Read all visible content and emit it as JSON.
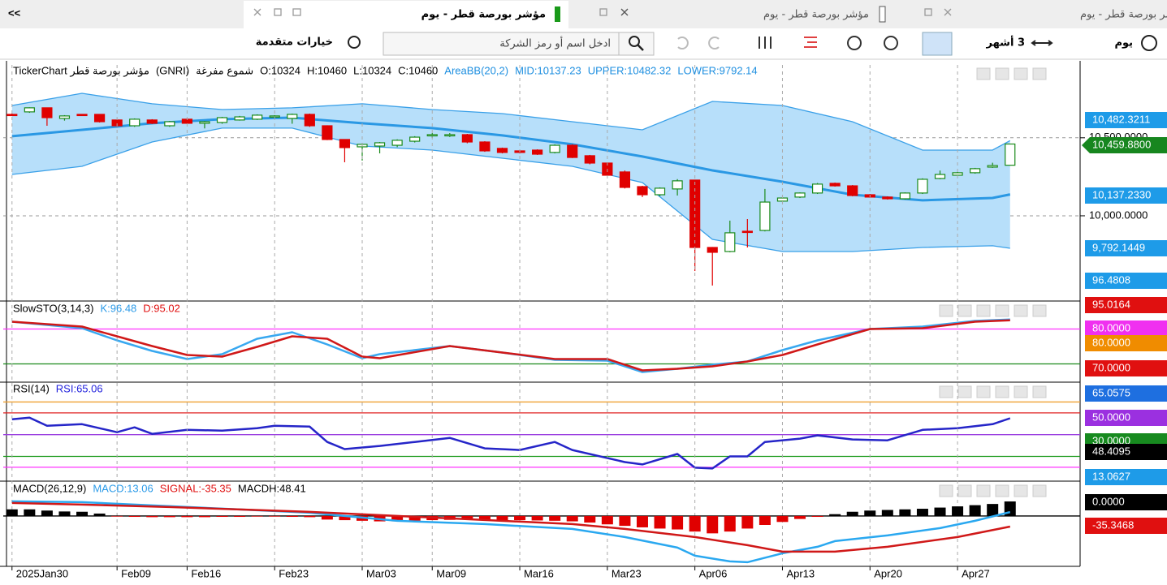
{
  "tabs": {
    "collapse": "<<",
    "titles": [
      "مؤشر بورصة قطر - يوم",
      "مؤشر بورصة قطر - يوم",
      "مؤشر بورصة قطر - يوم"
    ]
  },
  "toolbar": {
    "advanced": "خيارات متقدمة",
    "search_placeholder": "ادخل اسم أو رمز الشركة",
    "period": "3 أشهر",
    "interval": "يوم"
  },
  "chart_data": [
    {
      "type": "candlestick",
      "legend": [
        {
          "text": "TickerChart مؤشر بورصة قطر",
          "color": "#000000"
        },
        {
          "text": "(GNRI)",
          "color": "#000000"
        },
        {
          "text": "شموع مفرغة",
          "color": "#000000"
        },
        {
          "text": "O:10324",
          "color": "#000000"
        },
        {
          "text": "H:10460",
          "color": "#000000"
        },
        {
          "text": "L:10324",
          "color": "#000000"
        },
        {
          "text": "C:10460",
          "color": "#000000"
        },
        {
          "text": "AreaBB(20,2)",
          "color": "#1e8fe0"
        },
        {
          "text": "MID:10137.23",
          "color": "#1e8fe0"
        },
        {
          "text": "UPPER:10482.32",
          "color": "#1e8fe0"
        },
        {
          "text": "LOWER:9792.14",
          "color": "#1e8fe0"
        }
      ],
      "xlim": [
        -0.5,
        61
      ],
      "ylim": [
        9459,
        10967
      ],
      "yticks": [
        {
          "value": 10000,
          "label": "10,000.0000"
        },
        {
          "value": 10500,
          "label": "10,500.0000"
        }
      ],
      "candles": {
        "up_color": "#1a8a1a",
        "down_color": "#e00000",
        "open": [
          10650,
          10666,
          10692,
          10624,
          10650,
          10650,
          10614,
          10577,
          10614,
          10577,
          10619,
          10593,
          10598,
          10614,
          10619,
          10634,
          10624,
          10650,
          10577,
          10489,
          10442,
          10447,
          10452,
          10478,
          10515,
          10515,
          10520,
          10473,
          10432,
          10416,
          10421,
          10406,
          10452,
          10385,
          10338,
          10281,
          10187,
          10135,
          10172,
          10229,
          9797,
          9771,
          9901,
          9906,
          10094,
          10120,
          10146,
          10208,
          10192,
          10135,
          10120,
          10109,
          10146,
          10239,
          10260,
          10276,
          10312,
          10324
        ],
        "high": [
          10655,
          10695,
          10692,
          10645,
          10652,
          10652,
          10620,
          10624,
          10619,
          10608,
          10624,
          10608,
          10634,
          10640,
          10650,
          10645,
          10655,
          10655,
          10580,
          10490,
          10465,
          10473,
          10490,
          10510,
          10530,
          10530,
          10525,
          10478,
          10437,
          10420,
          10426,
          10458,
          10458,
          10390,
          10343,
          10290,
          10192,
          10182,
          10235,
          10229,
          9800,
          9969,
          9979,
          10172,
          10120,
          10150,
          10210,
          10213,
          10197,
          10140,
          10125,
          10150,
          10240,
          10290,
          10281,
          10307,
          10340,
          10460
        ],
        "low": [
          10640,
          10660,
          10577,
          10610,
          10640,
          10598,
          10570,
          10570,
          10588,
          10570,
          10588,
          10560,
          10590,
          10610,
          10614,
          10630,
          10590,
          10570,
          10485,
          10343,
          10354,
          10400,
          10440,
          10470,
          10500,
          10505,
          10465,
          10410,
          10400,
          10400,
          10390,
          10400,
          10370,
          10330,
          10255,
          10175,
          10120,
          10125,
          10130,
          9646,
          9553,
          9766,
          9797,
          9900,
          10088,
          10114,
          10140,
          10187,
          10125,
          10114,
          10104,
          10104,
          10140,
          10234,
          10255,
          10270,
          10307,
          10324
        ],
        "close": [
          10645,
          10692,
          10629,
          10640,
          10645,
          10603,
          10577,
          10619,
          10593,
          10603,
          10593,
          10603,
          10629,
          10634,
          10645,
          10640,
          10650,
          10577,
          10489,
          10437,
          10458,
          10468,
          10484,
          10504,
          10520,
          10520,
          10473,
          10416,
          10406,
          10406,
          10395,
          10452,
          10374,
          10338,
          10260,
          10182,
          10135,
          10177,
          10224,
          9797,
          9766,
          9891,
          9896,
          10088,
          10114,
          10146,
          10203,
          10192,
          10130,
          10120,
          10109,
          10146,
          10234,
          10265,
          10276,
          10302,
          10322,
          10460
        ]
      },
      "band": {
        "line_color": "#3aa0e8",
        "fill_color": "#b7dffa",
        "mid_color": "#2a98e4",
        "x": [
          0,
          4,
          8,
          12,
          16,
          20,
          24,
          28,
          32,
          36,
          40,
          44,
          48,
          52,
          56,
          57
        ],
        "upper": [
          10707,
          10785,
          10718,
          10681,
          10692,
          10718,
          10681,
          10655,
          10603,
          10551,
          10733,
          10707,
          10603,
          10421,
          10421,
          10482
        ],
        "mid": [
          10510,
          10551,
          10593,
          10619,
          10629,
          10593,
          10562,
          10515,
          10458,
          10380,
          10291,
          10218,
          10135,
          10099,
          10114,
          10137
        ],
        "lower": [
          10265,
          10317,
          10473,
          10562,
          10562,
          10447,
          10421,
          10369,
          10317,
          10213,
          9849,
          9771,
          9771,
          9797,
          9808,
          9792
        ]
      },
      "axis_labels": [
        {
          "label": "10,482.3211",
          "color": "#1e9be8"
        },
        {
          "label": "10,459.8800",
          "color": "#17861f",
          "pointer": true
        },
        {
          "label": "10,137.2330",
          "color": "#1e9be8"
        },
        {
          "label": "9,792.1449",
          "color": "#1e9be8"
        },
        {
          "label": "96.4808",
          "color": "#1e9be8"
        }
      ]
    },
    {
      "type": "line",
      "legend": [
        {
          "text": "SlowSTO(3,14,3)",
          "color": "#000000"
        },
        {
          "text": "K:96.48",
          "color": "#2a9ae8"
        },
        {
          "text": "D:95.02",
          "color": "#e01010"
        }
      ],
      "xlim": [
        -0.5,
        61
      ],
      "ylim": [
        -10,
        124
      ],
      "levels": [
        {
          "value": 80,
          "color": "#ff33ff"
        },
        {
          "value": 20,
          "color": "#1a8a1a"
        }
      ],
      "series": [
        {
          "color": "#38a8f0",
          "x": [
            0,
            4,
            6,
            8,
            10,
            12,
            14,
            16,
            18,
            20,
            21,
            25,
            28,
            31,
            34,
            36,
            38,
            40,
            42,
            44,
            46,
            49,
            52,
            55,
            57
          ],
          "values": [
            92.6,
            81.4,
            60.5,
            42.3,
            28.4,
            36.8,
            63.3,
            74.4,
            53.5,
            29.8,
            36.8,
            50.7,
            39.6,
            27,
            25.6,
            6.1,
            11.7,
            18.6,
            24.2,
            43.7,
            60.5,
            80,
            84.2,
            94,
            96.48
          ]
        },
        {
          "color": "#d01818",
          "x": [
            0,
            4,
            6,
            8,
            10,
            12,
            14,
            16,
            18,
            20,
            21,
            25,
            28,
            31,
            34,
            36,
            38,
            40,
            42,
            44,
            46,
            49,
            52,
            55,
            57
          ],
          "values": [
            92.6,
            84.2,
            67.4,
            50.7,
            35.4,
            32.6,
            49.3,
            67.4,
            63.3,
            32.6,
            29.8,
            50.7,
            39.6,
            28.4,
            28.4,
            8.9,
            11.7,
            15.8,
            24.2,
            35.4,
            53.5,
            80,
            81.4,
            92.6,
            95.02
          ]
        }
      ],
      "axis_labels": [
        {
          "label": "95.0164",
          "color": "#e01010"
        },
        {
          "label": "80.0000",
          "color": "#f030f0"
        },
        {
          "label": "80.0000",
          "color": "#f08c00"
        },
        {
          "label": "70.0000",
          "color": "#e01010"
        }
      ]
    },
    {
      "type": "line",
      "legend": [
        {
          "text": "RSI(14)",
          "color": "#000000"
        },
        {
          "text": "RSI:65.06",
          "color": "#2222dd"
        }
      ],
      "xlim": [
        -0.5,
        61
      ],
      "ylim": [
        8,
        96
      ],
      "levels": [
        {
          "value": 80,
          "color": "#f0a030"
        },
        {
          "value": 70,
          "color": "#e02020"
        },
        {
          "value": 50,
          "color": "#9b40e0"
        },
        {
          "value": 30,
          "color": "#1a9a1a"
        },
        {
          "value": 20,
          "color": "#ff33ff"
        }
      ],
      "series": [
        {
          "color": "#2525c8",
          "x": [
            0,
            1,
            2,
            4,
            6,
            7,
            8,
            10,
            12,
            14,
            15,
            17,
            18,
            19,
            21,
            23,
            25,
            27,
            29,
            31,
            32,
            35,
            36,
            38,
            39,
            40,
            41,
            42,
            43,
            45,
            46,
            48,
            50,
            52,
            54,
            56,
            57
          ],
          "values": [
            64.1,
            65.6,
            58.1,
            59.6,
            52.2,
            56.7,
            50.7,
            54.4,
            53.7,
            55.9,
            58.1,
            57.4,
            43.3,
            36.7,
            39.6,
            43.3,
            47,
            37.4,
            35.9,
            43.3,
            35.9,
            24.8,
            22.6,
            32.2,
            19.6,
            18.9,
            30,
            30,
            43.3,
            46.3,
            49.3,
            45.6,
            44.8,
            54.4,
            55.9,
            59.6,
            65.06
          ]
        }
      ],
      "axis_labels": [
        {
          "label": "65.0575",
          "color": "#1e6fe0"
        },
        {
          "label": "50.0000",
          "color": "#9b30e0"
        },
        {
          "label": "30.0000",
          "color": "#178a1f"
        },
        {
          "label": "48.4095",
          "color": "#000000"
        },
        {
          "label": "13.0627",
          "color": "#1e9be8"
        }
      ]
    },
    {
      "type": "combo",
      "legend": [
        {
          "text": "MACD(26,12,9)",
          "color": "#000000"
        },
        {
          "text": "MACD:13.06",
          "color": "#2a9ae8"
        },
        {
          "text": "SIGNAL:-35.35",
          "color": "#e01010"
        },
        {
          "text": "MACDH:48.41",
          "color": "#000000"
        }
      ],
      "xlim": [
        -0.5,
        61
      ],
      "ylim": [
        -168,
        108
      ],
      "levels": [
        {
          "value": 0,
          "color": "#000000"
        }
      ],
      "bars": {
        "up_color": "#000000",
        "down_color": "#e00000",
        "values": [
          22,
          22,
          18,
          15,
          14,
          8,
          -2,
          -3,
          -4,
          -4,
          -4,
          -4,
          -3,
          -3,
          -2,
          -2,
          -3,
          -4,
          -12,
          -14,
          -16,
          -18,
          -18,
          -16,
          -14,
          -13,
          -12,
          -12,
          -14,
          -14,
          -15,
          -16,
          -18,
          -22,
          -28,
          -33,
          -38,
          -42,
          -45,
          -52,
          -58,
          -52,
          -42,
          -30,
          -20,
          -10,
          -3,
          6,
          14,
          18,
          20,
          22,
          24,
          28,
          32,
          36,
          40,
          48.41
        ]
      },
      "series": [
        {
          "color": "#2aa8f0",
          "x": [
            0,
            4,
            9,
            13,
            17,
            19,
            22,
            27,
            32,
            35,
            38,
            39,
            41,
            42,
            44,
            46,
            47,
            50,
            53,
            55,
            57
          ],
          "values": [
            48.7,
            46,
            32.5,
            21.6,
            10.8,
            0,
            -16.2,
            -27.1,
            -43.3,
            -70.3,
            -105.5,
            -132.6,
            -151.5,
            -154.2,
            -124.5,
            -102.8,
            -83.9,
            -64.9,
            -40.6,
            -16.2,
            13.06
          ]
        },
        {
          "color": "#d01818",
          "x": [
            0,
            4,
            9,
            13,
            17,
            22,
            27,
            32,
            35,
            39,
            42,
            44,
            47,
            50,
            54,
            57
          ],
          "values": [
            43.3,
            37.9,
            29.8,
            21.6,
            13.5,
            0,
            -13.5,
            -27.1,
            -43.3,
            -70.3,
            -97.4,
            -119,
            -119,
            -102.8,
            -70.3,
            -35.35
          ]
        }
      ],
      "xticks": [
        {
          "value": 0,
          "label": "2025Jan30"
        },
        {
          "value": 6,
          "label": "Feb09"
        },
        {
          "value": 10,
          "label": "Feb16"
        },
        {
          "value": 15,
          "label": "Feb23"
        },
        {
          "value": 20,
          "label": "Mar03"
        },
        {
          "value": 24,
          "label": "Mar09"
        },
        {
          "value": 29,
          "label": "Mar16"
        },
        {
          "value": 34,
          "label": "Mar23"
        },
        {
          "value": 39,
          "label": "Apr06"
        },
        {
          "value": 44,
          "label": "Apr13"
        },
        {
          "value": 49,
          "label": "Apr20"
        },
        {
          "value": 54,
          "label": "Apr27"
        }
      ],
      "axis_labels": [
        {
          "label": "0.0000",
          "color": "#000000"
        },
        {
          "label": "-35.3468",
          "color": "#e01010"
        }
      ]
    }
  ]
}
